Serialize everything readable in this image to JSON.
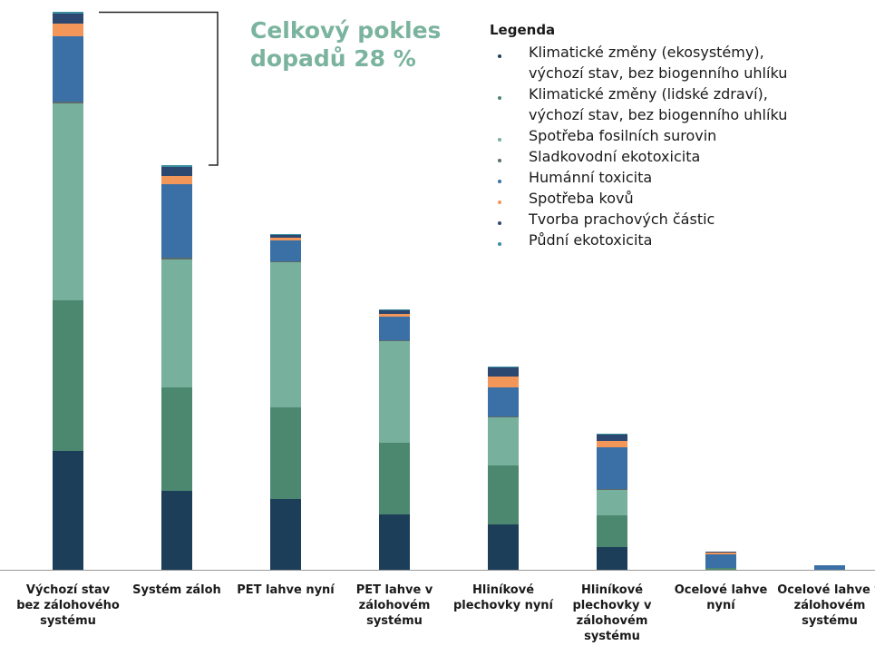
{
  "chart_data": {
    "type": "bar",
    "stacked": true,
    "annotation": "Celkový pokles dopadů 28 %",
    "legend_title": "Legenda",
    "categories": [
      "Výchozí stav bez zálohového systému",
      "Systém záloh",
      "PET lahve nyní",
      "PET lahve v zálohovém systému",
      "Hliníkové plechovky nyní",
      "Hliníkové plechovky v zálohovém systému",
      "Ocelové lahve nyní",
      "Ocelové lahve v zálohovém systému"
    ],
    "series": [
      {
        "name": "Klimatické změny (ekosystémy), výchozí stav, bez biogenního uhlíku",
        "color": "#1d3e59",
        "values": [
          131,
          87,
          78,
          61,
          50,
          25,
          0,
          0
        ]
      },
      {
        "name": "Klimatické změny (lidské zdraví), výchozí stav, bez biogenního uhlíku",
        "color": "#4c8870",
        "values": [
          166,
          114,
          101,
          79,
          65,
          35,
          2,
          0
        ]
      },
      {
        "name": "Spotřeba fosilních surovin",
        "color": "#77b09d",
        "values": [
          217,
          141,
          160,
          112,
          53,
          28,
          0,
          0
        ]
      },
      {
        "name": "Sladkovodní ekotoxicita",
        "color": "#5b6b6e",
        "values": [
          2,
          2,
          1,
          1,
          1,
          1,
          0,
          0
        ]
      },
      {
        "name": "Humánní toxicita",
        "color": "#3b70a6",
        "values": [
          72,
          81,
          23,
          26,
          32,
          46,
          15,
          5
        ]
      },
      {
        "name": "Spotřeba kovů",
        "color": "#f29659",
        "values": [
          14,
          9,
          3,
          3,
          12,
          7,
          2,
          0
        ]
      },
      {
        "name": "Tvorba prachových částic",
        "color": "#2d4870",
        "values": [
          11,
          10,
          3,
          4,
          10,
          7,
          1,
          0
        ]
      },
      {
        "name": "Půdní ekotoxicita",
        "color": "#3a8ea0",
        "values": [
          2,
          2,
          1,
          1,
          1,
          1,
          0,
          0
        ]
      }
    ]
  }
}
